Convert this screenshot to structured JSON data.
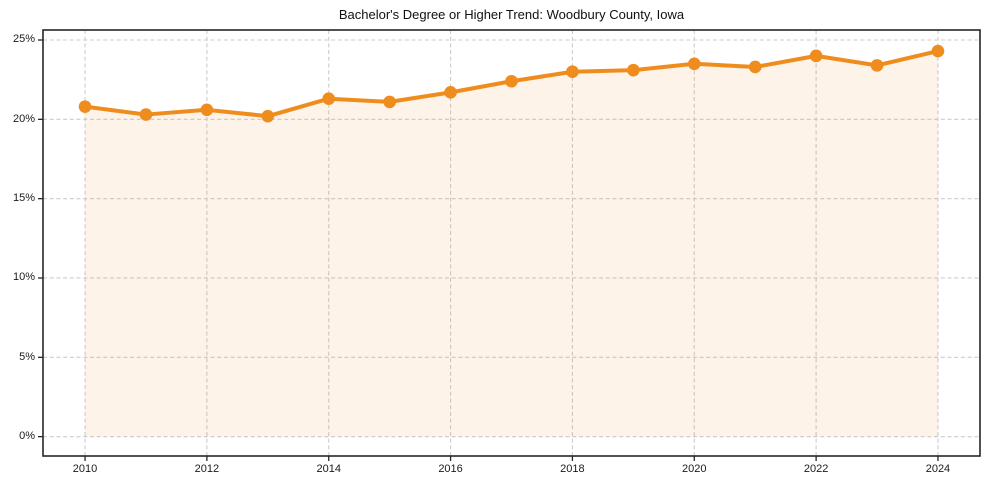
{
  "chart_data": {
    "type": "area",
    "title": "Bachelor's Degree or Higher Trend: Woodbury County, Iowa",
    "xlabel": "",
    "ylabel": "",
    "x": [
      2010,
      2011,
      2012,
      2013,
      2014,
      2015,
      2016,
      2017,
      2018,
      2019,
      2020,
      2021,
      2022,
      2023,
      2024
    ],
    "values": [
      20.8,
      20.3,
      20.6,
      20.2,
      21.3,
      21.1,
      21.7,
      22.4,
      23.0,
      23.1,
      23.5,
      23.3,
      24.0,
      23.4,
      24.3
    ],
    "unit": "%",
    "xticks": [
      "2010",
      "2012",
      "2014",
      "2016",
      "2018",
      "2020",
      "2022",
      "2024"
    ],
    "xtick_values": [
      2010,
      2012,
      2014,
      2016,
      2018,
      2020,
      2022,
      2024
    ],
    "ytick_labels": [
      "0%",
      "5%",
      "10%",
      "15%",
      "20%",
      "25%"
    ],
    "ytick_values": [
      0,
      5,
      10,
      15,
      20,
      25
    ],
    "xlim": [
      2009.31,
      2024.69
    ],
    "ylim": [
      -1.22,
      25.63
    ],
    "grid": true,
    "legend": false,
    "baseline_value": 0,
    "colors": {
      "line": "#ef8c1e",
      "marker": "#ef8c1e",
      "fill": "#ef8c1e",
      "fill_opacity": "0.1",
      "grid": "#cccccc",
      "spine": "#262626",
      "text": "#1a1a1a",
      "background": "#ffffff"
    }
  }
}
